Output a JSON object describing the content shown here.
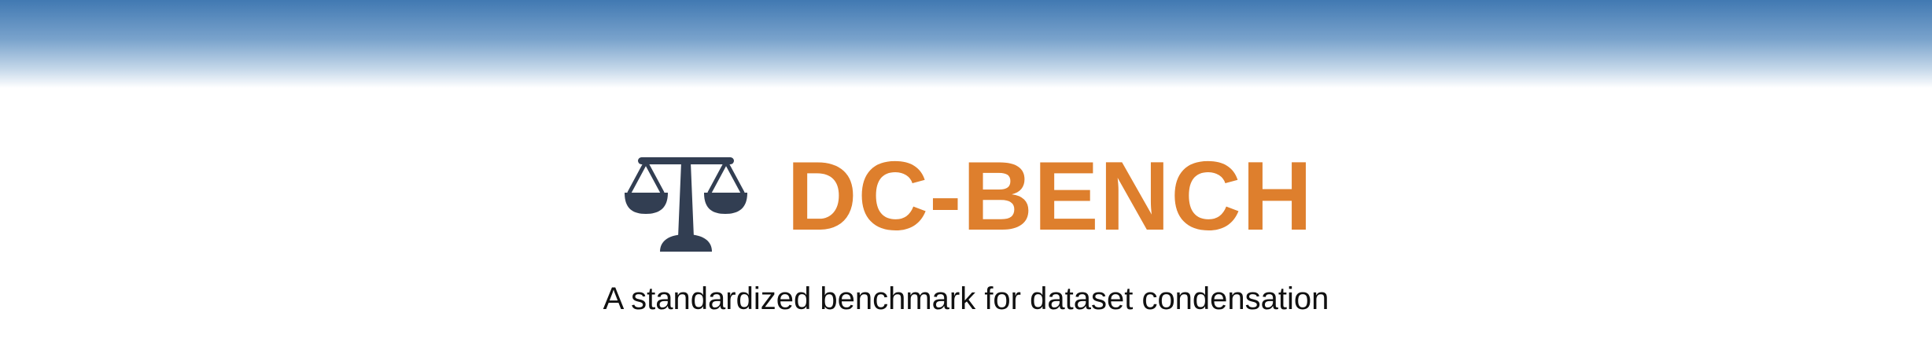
{
  "header": {
    "logo_icon": "balance-scale-icon",
    "title": "DC-BENCH",
    "tagline": "A standardized benchmark for dataset condensation"
  },
  "colors": {
    "banner_top": "#4179b2",
    "title": "#de7f2d",
    "icon": "#323e52",
    "tagline": "#111111"
  }
}
